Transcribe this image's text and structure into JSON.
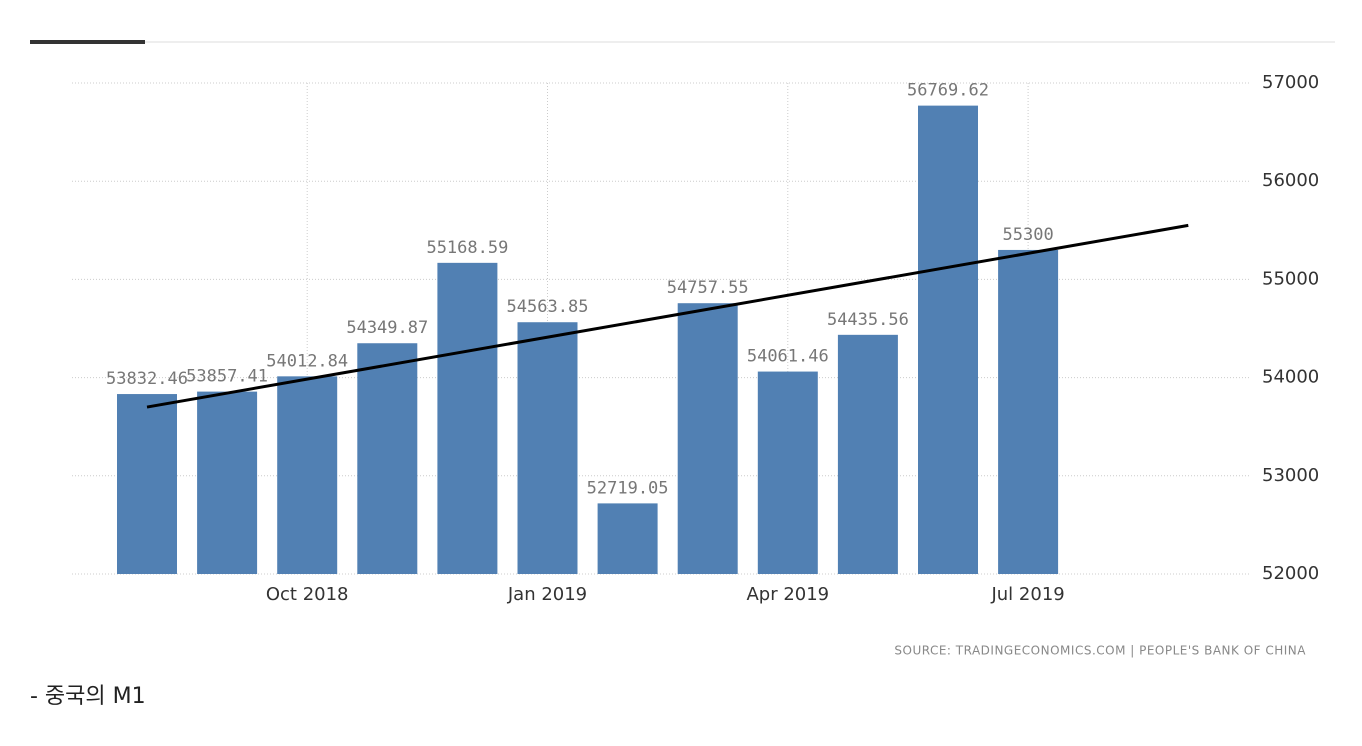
{
  "chart_data": {
    "type": "bar",
    "categories": [
      null,
      null,
      "Oct 2018",
      null,
      null,
      "Jan 2019",
      null,
      null,
      "Apr 2019",
      null,
      null,
      "Jul 2019"
    ],
    "values": [
      53832.46,
      53857.41,
      54012.84,
      54349.87,
      55168.59,
      54563.85,
      52719.05,
      54757.55,
      54061.46,
      54435.56,
      56769.62,
      55300
    ],
    "color": "#5180b3",
    "ylim": [
      52000,
      57000
    ],
    "yticks": [
      52000,
      53000,
      54000,
      55000,
      56000,
      57000
    ],
    "y_axis_side": "right",
    "grid": true,
    "trend_line": {
      "values": [
        53700,
        55550
      ],
      "color": "#000000"
    },
    "source": "SOURCE: TRADINGECONOMICS.COM  |  PEOPLE'S BANK OF CHINA"
  },
  "caption": "- 중국의 M1"
}
